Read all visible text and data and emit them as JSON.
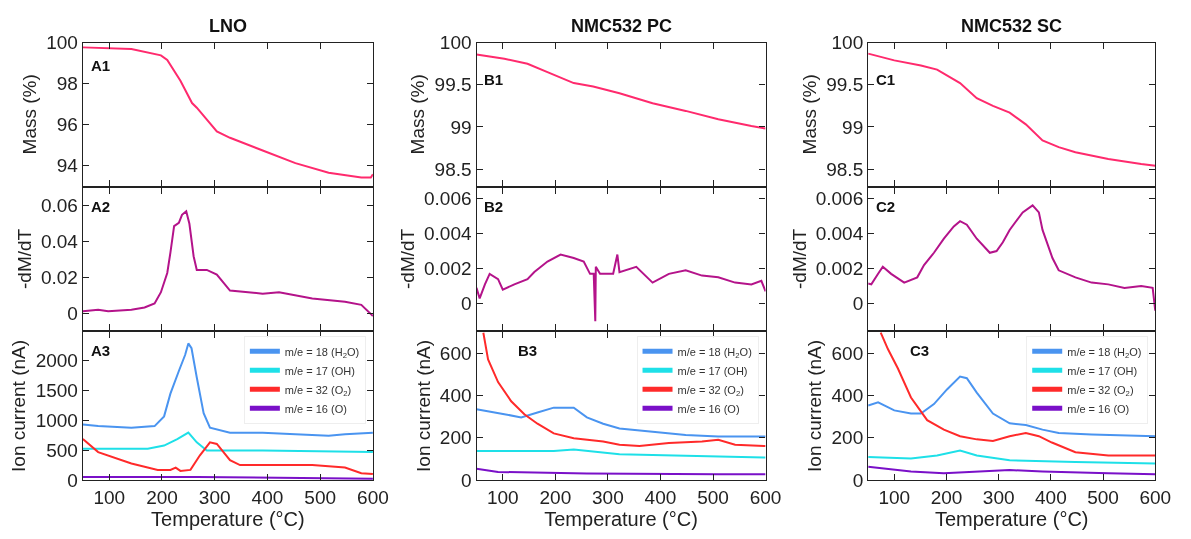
{
  "chart_data": [
    {
      "type": "line",
      "title": "LNO",
      "ylabel": "Mass (%)",
      "annotations": [
        "A1"
      ],
      "xlim": [
        50,
        600
      ],
      "ylim": [
        93,
        100
      ],
      "xticks": [
        100,
        200,
        300,
        400,
        500,
        600
      ],
      "yticks": [
        94,
        96,
        98,
        100
      ],
      "tick_labels": "y",
      "series": [
        {
          "color": "#ff2a6d",
          "x": [
            50,
            142,
            198,
            210,
            235,
            257,
            266,
            304,
            329,
            391,
            453,
            516,
            578,
            596,
            600
          ],
          "values": [
            99.77,
            99.69,
            99.38,
            99.15,
            98.14,
            97.05,
            96.82,
            95.66,
            95.35,
            94.73,
            94.11,
            93.64,
            93.41,
            93.41,
            93.57
          ]
        }
      ]
    },
    {
      "type": "line",
      "title": "NMC532 PC",
      "ylabel": "Mass (%)",
      "annotations": [
        "B1"
      ],
      "xlim": [
        50,
        600
      ],
      "ylim": [
        98.3,
        100
      ],
      "xticks": [
        100,
        200,
        300,
        400,
        500,
        600
      ],
      "yticks": [
        98.5,
        99,
        99.5,
        100
      ],
      "tick_labels": "y",
      "series": [
        {
          "color": "#ff2a6d",
          "x": [
            50,
            103,
            147,
            185,
            235,
            272,
            322,
            385,
            448,
            510,
            573,
            600
          ],
          "values": [
            99.86,
            99.81,
            99.75,
            99.65,
            99.52,
            99.48,
            99.4,
            99.28,
            99.19,
            99.09,
            99.01,
            98.98
          ]
        }
      ]
    },
    {
      "type": "line",
      "title": "NMC532 SC",
      "ylabel": "Mass (%)",
      "annotations": [
        "C1"
      ],
      "xlim": [
        50,
        600
      ],
      "ylim": [
        98.3,
        100
      ],
      "xticks": [
        100,
        200,
        300,
        400,
        500,
        600
      ],
      "yticks": [
        98.5,
        99,
        99.5,
        100
      ],
      "tick_labels": "y",
      "series": [
        {
          "color": "#ff2a6d",
          "x": [
            50,
            100,
            151,
            182,
            226,
            258,
            289,
            321,
            352,
            384,
            415,
            447,
            510,
            573,
            600
          ],
          "values": [
            99.87,
            99.79,
            99.73,
            99.68,
            99.52,
            99.34,
            99.25,
            99.17,
            99.03,
            98.84,
            98.76,
            98.7,
            98.62,
            98.56,
            98.54
          ]
        }
      ]
    },
    {
      "type": "line",
      "ylabel": "-dM/dT",
      "annotations": [
        "A2"
      ],
      "xlim": [
        50,
        600
      ],
      "ylim": [
        -0.009,
        0.07
      ],
      "xticks": [
        100,
        200,
        300,
        400,
        500,
        600
      ],
      "yticks": [
        0,
        0.02,
        0.04,
        0.06
      ],
      "tick_labels": "y",
      "series": [
        {
          "color": "#b4138a",
          "x": [
            50,
            79,
            98,
            142,
            167,
            186,
            198,
            210,
            216,
            223,
            232,
            238,
            246,
            252,
            260,
            266,
            285,
            304,
            329,
            391,
            422,
            485,
            547,
            578,
            600
          ],
          "values": [
            0.0014,
            0.0023,
            0.0014,
            0.0023,
            0.0035,
            0.0058,
            0.012,
            0.0227,
            0.034,
            0.0487,
            0.0505,
            0.055,
            0.057,
            0.05,
            0.032,
            0.0244,
            0.0244,
            0.0218,
            0.0129,
            0.0112,
            0.012,
            0.0085,
            0.0067,
            0.005,
            -0.0012
          ]
        }
      ]
    },
    {
      "type": "line",
      "ylabel": "-dM/dT",
      "annotations": [
        "B2"
      ],
      "xlim": [
        50,
        600
      ],
      "ylim": [
        -0.0015,
        0.0066
      ],
      "xticks": [
        100,
        200,
        300,
        400,
        500,
        600
      ],
      "yticks": [
        0,
        0.002,
        0.004,
        0.006
      ],
      "tick_labels": "y",
      "series": [
        {
          "color": "#b4138a",
          "x": [
            50,
            56,
            66,
            75,
            91,
            100,
            122,
            147,
            160,
            185,
            210,
            235,
            254,
            266,
            273,
            276,
            277,
            285,
            310,
            318,
            322,
            354,
            385,
            416,
            448,
            479,
            510,
            542,
            573,
            592,
            600
          ],
          "values": [
            0.0009,
            0.0003,
            0.0011,
            0.0017,
            0.0014,
            0.0008,
            0.0011,
            0.0014,
            0.0018,
            0.0024,
            0.0028,
            0.0026,
            0.0024,
            0.0017,
            0.0017,
            -0.001,
            0.0021,
            0.0017,
            0.0017,
            0.0028,
            0.0018,
            0.0021,
            0.0012,
            0.0017,
            0.0019,
            0.0016,
            0.0015,
            0.0012,
            0.0011,
            0.0013,
            0.0007
          ]
        }
      ]
    },
    {
      "type": "line",
      "ylabel": "-dM/dT",
      "annotations": [
        "C2"
      ],
      "xlim": [
        50,
        600
      ],
      "ylim": [
        -0.0015,
        0.0066
      ],
      "xticks": [
        100,
        200,
        300,
        400,
        500,
        600
      ],
      "yticks": [
        0,
        0.002,
        0.004,
        0.006
      ],
      "tick_labels": "y",
      "series": [
        {
          "color": "#b4138a",
          "x": [
            50,
            56,
            69,
            78,
            94,
            119,
            144,
            157,
            176,
            195,
            214,
            226,
            239,
            258,
            283,
            296,
            308,
            321,
            346,
            365,
            377,
            384,
            403,
            415,
            447,
            478,
            510,
            541,
            573,
            595,
            600
          ],
          "values": [
            0.00115,
            0.0011,
            0.0017,
            0.0021,
            0.0017,
            0.0012,
            0.0015,
            0.0022,
            0.0029,
            0.0037,
            0.0044,
            0.0047,
            0.0045,
            0.0037,
            0.0029,
            0.003,
            0.0035,
            0.0042,
            0.0052,
            0.0056,
            0.0052,
            0.0042,
            0.0026,
            0.0019,
            0.0015,
            0.0012,
            0.0011,
            0.0009,
            0.001,
            0.0009,
            -0.0004
          ]
        }
      ]
    },
    {
      "type": "line",
      "ylabel": "Ion current (nA)",
      "xlabel": "Temperature (°C)",
      "annotations": [
        "A3"
      ],
      "xlim": [
        50,
        600
      ],
      "ylim": [
        0,
        2480
      ],
      "xticks": [
        100,
        200,
        300,
        400,
        500,
        600
      ],
      "yticks": [
        0,
        500,
        1000,
        1500,
        2000
      ],
      "legend": "top right",
      "series": [
        {
          "name": "m/e = 18 (H$_{2}$O)",
          "color": "#4a94f0",
          "x": [
            50,
            79,
            142,
            186,
            204,
            216,
            232,
            244,
            250,
            256,
            266,
            279,
            291,
            329,
            391,
            453,
            516,
            547,
            600
          ],
          "values": [
            929,
            902,
            875,
            902,
            1065,
            1446,
            1826,
            2098,
            2288,
            2207,
            1717,
            1120,
            875,
            793,
            793,
            766,
            739,
            766,
            793
          ]
        },
        {
          "name": "m/e = 17 (OH)",
          "color": "#1ee0e8",
          "x": [
            50,
            173,
            204,
            229,
            250,
            266,
            285,
            391,
            600
          ],
          "values": [
            522,
            522,
            576,
            685,
            793,
            630,
            495,
            495,
            467
          ]
        },
        {
          "name": "m/e = 32 (O$_{2}$)",
          "color": "#ff2a2a",
          "x": [
            50,
            79,
            142,
            192,
            216,
            226,
            235,
            254,
            272,
            291,
            304,
            329,
            348,
            391,
            485,
            547,
            578,
            600
          ],
          "values": [
            685,
            467,
            277,
            168,
            168,
            207,
            152,
            168,
            413,
            630,
            603,
            331,
            250,
            250,
            250,
            207,
            114,
            98
          ]
        },
        {
          "name": "m/e = 16 (O)",
          "color": "#7a10c8",
          "x": [
            50,
            266,
            600
          ],
          "values": [
            49,
            49,
            22
          ]
        }
      ]
    },
    {
      "type": "line",
      "ylabel": "Ion current (nA)",
      "xlabel": "Temperature (°C)",
      "annotations": [
        "B3"
      ],
      "xlim": [
        50,
        600
      ],
      "ylim": [
        0,
        700
      ],
      "xticks": [
        100,
        200,
        300,
        400,
        500,
        600
      ],
      "yticks": [
        0,
        200,
        400,
        600
      ],
      "legend": "top right",
      "series": [
        {
          "name": "m/e = 18 (H$_{2}$O)",
          "color": "#4a94f0",
          "x": [
            50,
            103,
            135,
            166,
            197,
            235,
            260,
            291,
            322,
            385,
            448,
            510,
            600
          ],
          "values": [
            334,
            311,
            296,
            319,
            342,
            342,
            296,
            266,
            243,
            228,
            213,
            205,
            205
          ]
        },
        {
          "name": "m/e = 17 (OH)",
          "color": "#1ee0e8",
          "x": [
            50,
            197,
            235,
            322,
            448,
            600
          ],
          "values": [
            137,
            137,
            144,
            122,
            114,
            106
          ]
        },
        {
          "name": "m/e = 32 (O$_{2}$)",
          "color": "#ff2a2a",
          "x": [
            63,
            72,
            91,
            116,
            141,
            166,
            197,
            235,
            291,
            322,
            360,
            416,
            479,
            510,
            542,
            600
          ],
          "values": [
            696,
            570,
            463,
            372,
            311,
            266,
            220,
            197,
            182,
            167,
            160,
            175,
            182,
            190,
            167,
            160
          ]
        },
        {
          "name": "m/e = 16 (O)",
          "color": "#7a10c8",
          "x": [
            50,
            91,
            260,
            510,
            600
          ],
          "values": [
            53,
            38,
            30,
            27,
            27
          ]
        }
      ]
    },
    {
      "type": "line",
      "ylabel": "Ion current (nA)",
      "xlabel": "Temperature (°C)",
      "annotations": [
        "C3"
      ],
      "xlim": [
        50,
        600
      ],
      "ylim": [
        0,
        700
      ],
      "xticks": [
        100,
        200,
        300,
        400,
        500,
        600
      ],
      "yticks": [
        0,
        200,
        400,
        600
      ],
      "legend": "top right",
      "series": [
        {
          "name": "m/e = 18 (H$_{2}$O)",
          "color": "#4a94f0",
          "x": [
            50,
            69,
            100,
            132,
            151,
            176,
            201,
            226,
            239,
            258,
            289,
            321,
            352,
            384,
            415,
            478,
            600
          ],
          "values": [
            352,
            367,
            329,
            314,
            314,
            359,
            428,
            489,
            481,
            413,
            314,
            268,
            260,
            238,
            222,
            215,
            207
          ]
        },
        {
          "name": "m/e = 17 (OH)",
          "color": "#1ee0e8",
          "x": [
            50,
            132,
            182,
            226,
            258,
            321,
            447,
            600
          ],
          "values": [
            108,
            101,
            116,
            139,
            116,
            93,
            85,
            78
          ]
        },
        {
          "name": "m/e = 32 (O$_{2}$)",
          "color": "#ff2a2a",
          "x": [
            74,
            88,
            107,
            132,
            163,
            195,
            226,
            258,
            289,
            321,
            352,
            377,
            402,
            447,
            510,
            600
          ],
          "values": [
            697,
            618,
            527,
            390,
            283,
            238,
            207,
            192,
            184,
            207,
            222,
            207,
            177,
            131,
            116,
            116
          ]
        },
        {
          "name": "m/e = 16 (O)",
          "color": "#7a10c8",
          "x": [
            50,
            132,
            195,
            321,
            384,
            510,
            600
          ],
          "values": [
            62,
            40,
            32,
            47,
            40,
            32,
            27
          ]
        }
      ]
    }
  ]
}
